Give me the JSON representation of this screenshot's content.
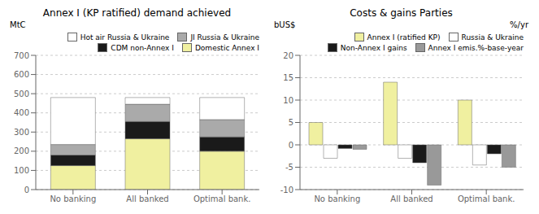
{
  "chart_data": [
    {
      "type": "bar",
      "title": "Annex I (KP ratified) demand achieved",
      "ylabel": "MtC",
      "categories": [
        "No banking",
        "All banked",
        "Optimal bank."
      ],
      "series": [
        {
          "name": "Hot air Russia & Ukraine",
          "color": "#ffffff",
          "values": [
            245,
            35,
            115
          ]
        },
        {
          "name": "JI Russia & Ukraine",
          "color": "#aaaaaa",
          "values": [
            55,
            90,
            90
          ]
        },
        {
          "name": "CDM non-Annex I",
          "color": "#1a1a1a",
          "values": [
            55,
            90,
            75
          ]
        },
        {
          "name": "Domestic Annex I",
          "color": "#f0f0a0",
          "values": [
            125,
            265,
            200
          ]
        }
      ],
      "stacked": true,
      "ylim": [
        0,
        700
      ],
      "yticks": [
        0,
        100,
        200,
        300,
        400,
        500,
        600,
        700
      ],
      "grid": true,
      "legend": "upper right"
    },
    {
      "type": "bar",
      "title": "Costs & gains Parties",
      "ylabel": "bUS$",
      "y2label": "%/yr",
      "categories": [
        "No banking",
        "All banked",
        "Optimal bank."
      ],
      "series": [
        {
          "name": "Annex I (ratified KP)",
          "color": "#f0f0a0",
          "values": [
            5,
            14,
            10
          ]
        },
        {
          "name": "Russia & Ukraine",
          "color": "#ffffff",
          "values": [
            -3,
            -3,
            -4.5
          ]
        },
        {
          "name": "Non-Annex I gains",
          "color": "#1a1a1a",
          "values": [
            -0.8,
            -4,
            -2
          ]
        },
        {
          "name": "Annex I emis.%-base-year",
          "color": "#999999",
          "values": [
            -1,
            -9,
            -5
          ]
        }
      ],
      "ylim": [
        -10,
        20
      ],
      "yticks": [
        -10,
        -5,
        0,
        5,
        10,
        15,
        20
      ],
      "grid": true,
      "legend": "upper right"
    }
  ]
}
